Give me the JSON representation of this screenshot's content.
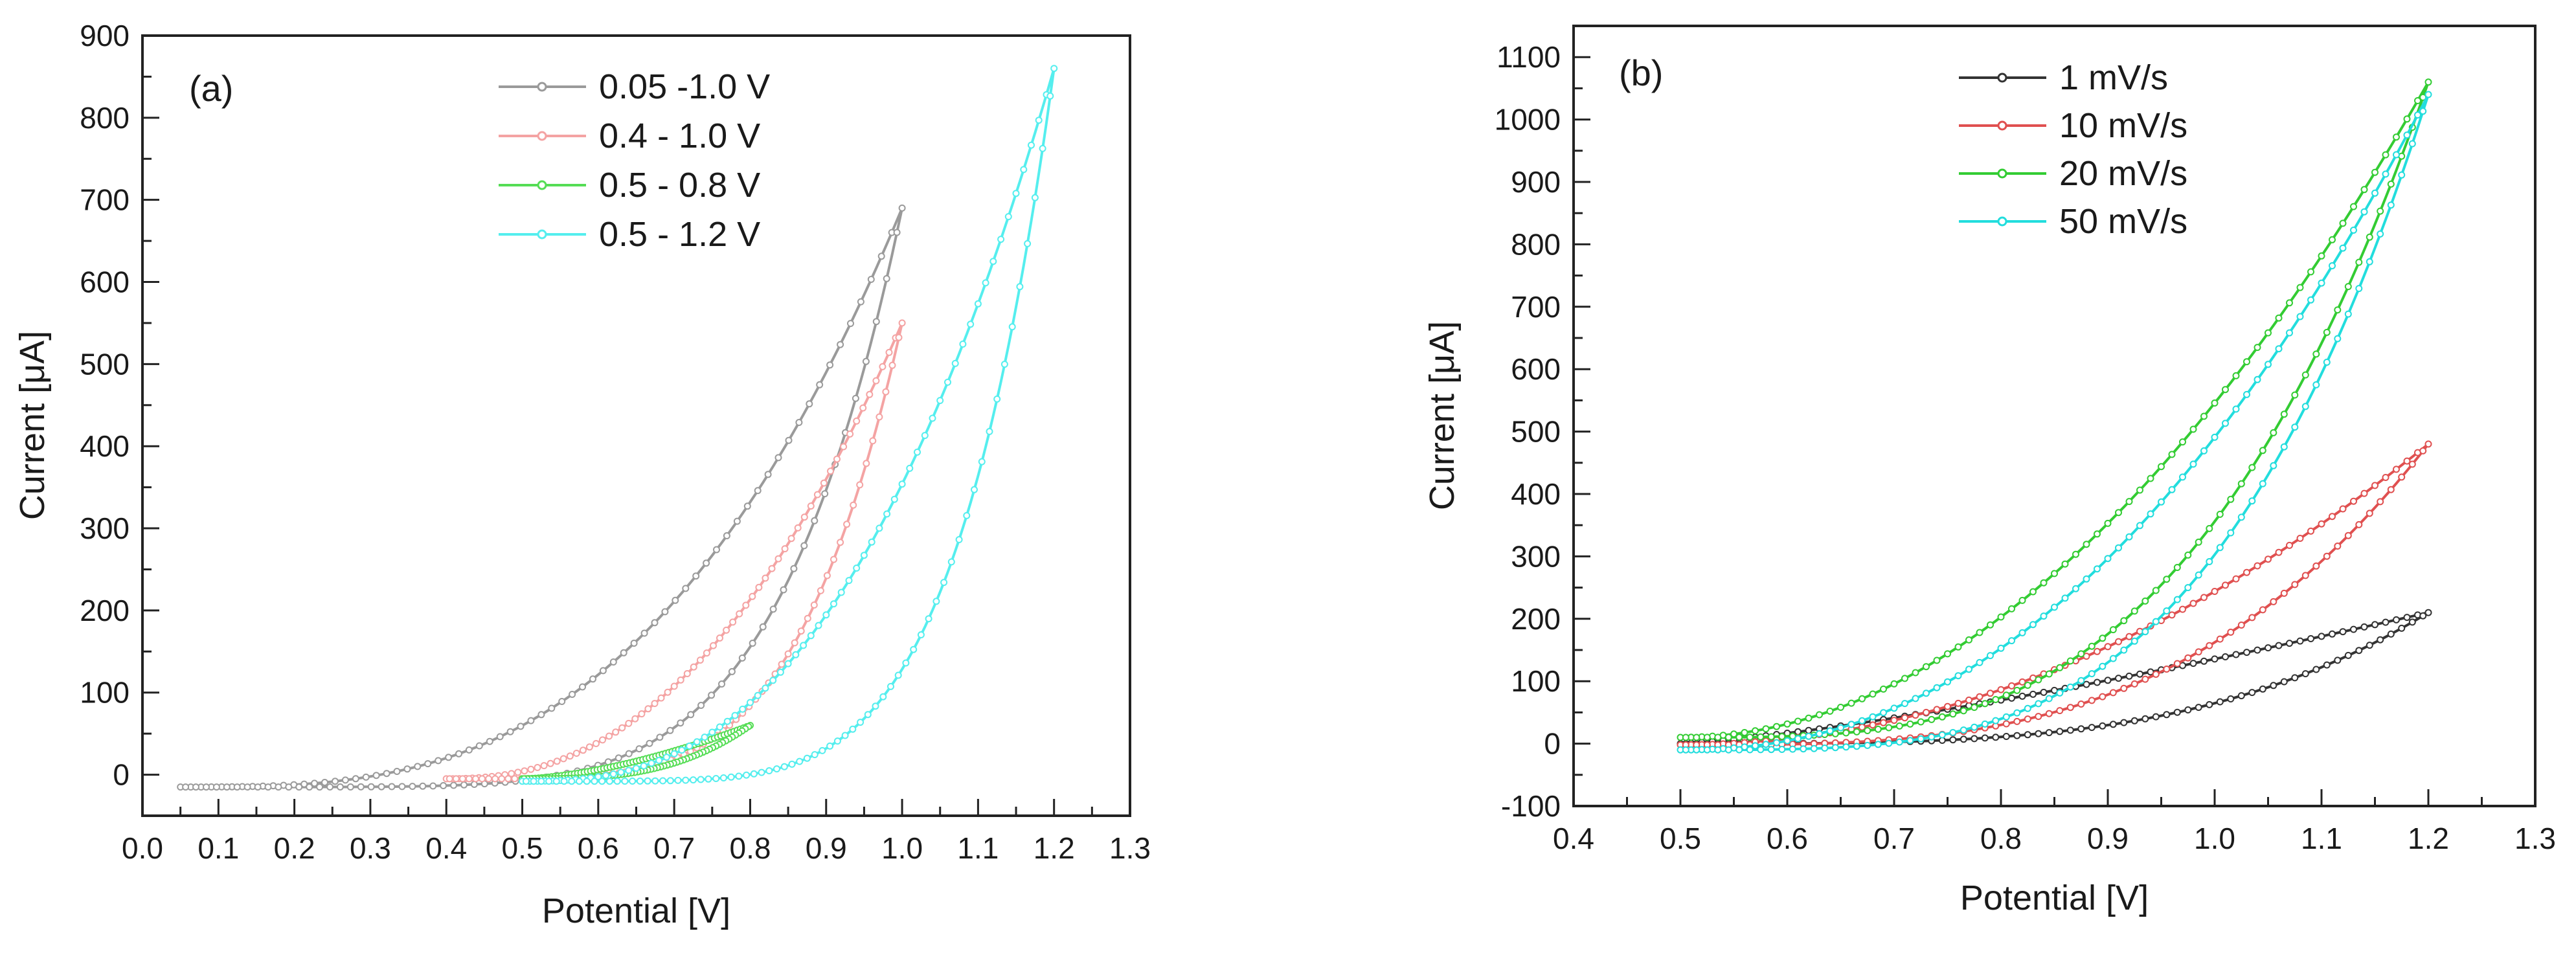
{
  "chart_data": [
    {
      "type": "line",
      "panel_label": "(a)",
      "title": "",
      "xlabel": "Potential [V]",
      "ylabel": "Current [μA]",
      "xlim": [
        0.0,
        1.3
      ],
      "ylim": [
        -50,
        900
      ],
      "xticks": [
        0.0,
        0.1,
        0.2,
        0.3,
        0.4,
        0.5,
        0.6,
        0.7,
        0.8,
        0.9,
        1.0,
        1.1,
        1.2,
        1.3
      ],
      "yticks": [
        0,
        100,
        200,
        300,
        400,
        500,
        600,
        700,
        800,
        900
      ],
      "xtick_labels": [
        "0.0",
        "0.1",
        "0.2",
        "0.3",
        "0.4",
        "0.5",
        "0.6",
        "0.7",
        "0.8",
        "0.9",
        "1.0",
        "1.1",
        "1.2",
        "1.3"
      ],
      "ytick_labels": [
        "0",
        "100",
        "200",
        "300",
        "400",
        "500",
        "600",
        "700",
        "800",
        "900"
      ],
      "legend_position": "top-center",
      "series": [
        {
          "name": "0.05 -1.0 V",
          "color": "#9a9a9a",
          "Emin": 0.05,
          "Emax": 1.0,
          "Imin": -15,
          "Imax": 690,
          "upper_exp": 3.0,
          "lower_exp": 6.0
        },
        {
          "name": "0.4 - 1.0 V",
          "color": "#f4a3a3",
          "Emin": 0.4,
          "Emax": 1.0,
          "Imin": -5,
          "Imax": 550,
          "upper_exp": 2.3,
          "lower_exp": 4.5
        },
        {
          "name": "0.5 - 0.8 V",
          "color": "#55dd55",
          "Emin": 0.5,
          "Emax": 0.8,
          "Imin": -5,
          "Imax": 60,
          "upper_exp": 1.6,
          "lower_exp": 3.0
        },
        {
          "name": "0.5 - 1.2 V",
          "color": "#55eeee",
          "Emin": 0.5,
          "Emax": 1.2,
          "Imin": -8,
          "Imax": 860,
          "upper_exp": 2.6,
          "lower_exp": 5.5
        }
      ]
    },
    {
      "type": "line",
      "panel_label": "(b)",
      "title": "",
      "xlabel": "Potential [V]",
      "ylabel": "Current [μA]",
      "xlim": [
        0.4,
        1.3
      ],
      "ylim": [
        -100,
        1150
      ],
      "xticks": [
        0.4,
        0.5,
        0.6,
        0.7,
        0.8,
        0.9,
        1.0,
        1.1,
        1.2,
        1.3
      ],
      "yticks": [
        -100,
        0,
        100,
        200,
        300,
        400,
        500,
        600,
        700,
        800,
        900,
        1000,
        1100
      ],
      "xtick_labels": [
        "0.4",
        "0.5",
        "0.6",
        "0.7",
        "0.8",
        "0.9",
        "1.0",
        "1.1",
        "1.2",
        "1.3"
      ],
      "ytick_labels": [
        "-100",
        "0",
        "100",
        "200",
        "300",
        "400",
        "500",
        "600",
        "700",
        "800",
        "900",
        "1000",
        "1100"
      ],
      "legend_position": "top-center",
      "series": [
        {
          "name": "1 mV/s",
          "color": "#333333",
          "Emin": 0.5,
          "Emax": 1.2,
          "Imin": 0,
          "Imax": 210,
          "upper_exp": 1.3,
          "lower_exp": 3.5
        },
        {
          "name": "10 mV/s",
          "color": "#e05050",
          "Emin": 0.5,
          "Emax": 1.2,
          "Imin": -2,
          "Imax": 480,
          "upper_exp": 2.0,
          "lower_exp": 3.2
        },
        {
          "name": "20 mV/s",
          "color": "#33cc33",
          "Emin": 0.5,
          "Emax": 1.2,
          "Imin": 10,
          "Imax": 1060,
          "upper_exp": 2.0,
          "lower_exp": 3.3
        },
        {
          "name": "50 mV/s",
          "color": "#22dddd",
          "Emin": 0.5,
          "Emax": 1.2,
          "Imin": -10,
          "Imax": 1040,
          "upper_exp": 2.2,
          "lower_exp": 3.6
        }
      ]
    }
  ]
}
